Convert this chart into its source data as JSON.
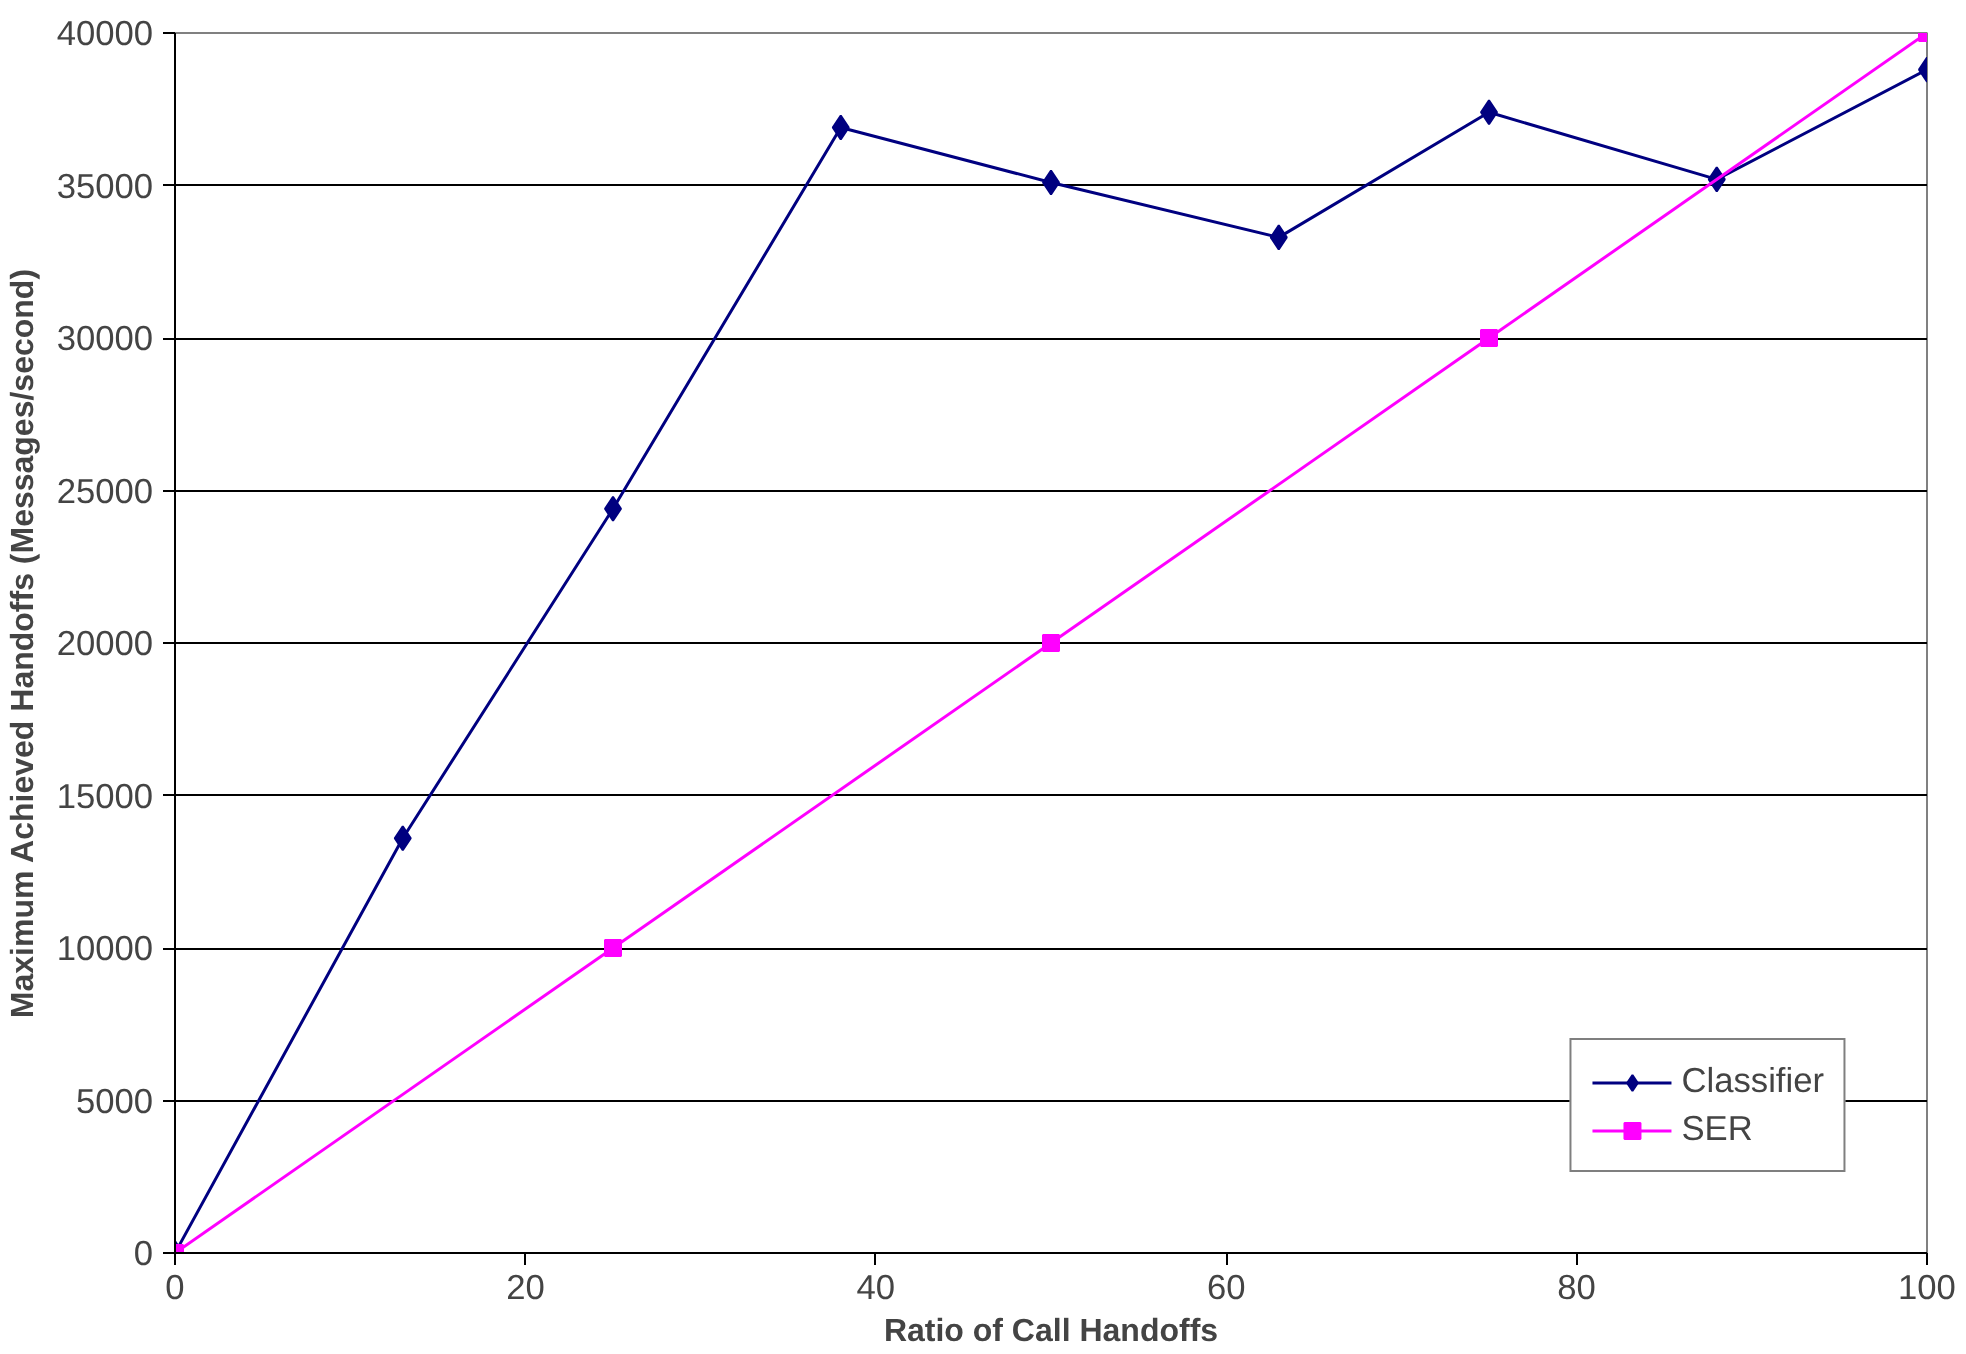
{
  "chart_data": {
    "type": "line",
    "xlabel": "Ratio of Call Handoffs",
    "ylabel": "Maximum Achieved Handoffs (Messages/second)",
    "xlim": [
      0,
      100
    ],
    "xticks": [
      0,
      20,
      40,
      60,
      80,
      100
    ],
    "ylim": [
      0,
      40000
    ],
    "yticks": [
      0,
      5000,
      10000,
      15000,
      20000,
      25000,
      30000,
      35000,
      40000
    ],
    "grid": "y",
    "legend": "bottom right",
    "line_style": "solid",
    "series": [
      {
        "name": "Classifier",
        "color": "#000080",
        "marker": "diamond",
        "x": [
          0,
          13,
          25,
          38,
          50,
          63,
          75,
          88,
          100
        ],
        "values": [
          0,
          13600,
          24400,
          36900,
          35100,
          33300,
          37400,
          35200,
          38800
        ]
      },
      {
        "name": "SER",
        "color": "#ff00ff",
        "marker": "square",
        "x": [
          0,
          25,
          50,
          75,
          100
        ],
        "values": [
          0,
          10000,
          20000,
          30000,
          40000
        ]
      }
    ]
  }
}
